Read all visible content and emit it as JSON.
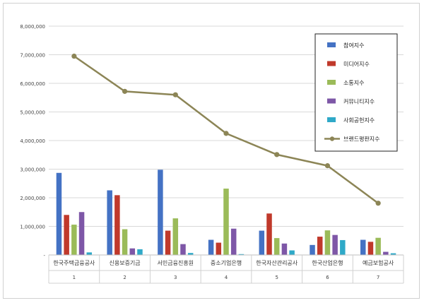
{
  "chart_data": {
    "type": "bar",
    "title": "",
    "xlabel": "",
    "ylabel": "",
    "ylim": [
      0,
      8000000
    ],
    "ytick_labels": [
      "-",
      "1,000,000",
      "2,000,000",
      "3,000,000",
      "4,000,000",
      "5,000,000",
      "6,000,000",
      "7,000,000",
      "8,000,000"
    ],
    "grid": true,
    "legend_position": "top-right",
    "categories": [
      "한국주택금융공사",
      "신용보증기금",
      "서민금융진흥원",
      "중소기업은행",
      "한국자산관리공사",
      "한국산업은행",
      "예금보험공사"
    ],
    "category_numbers": [
      "1",
      "2",
      "3",
      "4",
      "5",
      "6",
      "7"
    ],
    "series": [
      {
        "name": "참여지수",
        "kind": "bar",
        "color": "#4472C4",
        "values": [
          2870000,
          2260000,
          2980000,
          530000,
          850000,
          350000,
          530000
        ]
      },
      {
        "name": "미디어지수",
        "kind": "bar",
        "color": "#C0392B",
        "values": [
          1400000,
          2090000,
          850000,
          430000,
          1450000,
          640000,
          460000
        ]
      },
      {
        "name": "소통지수",
        "kind": "bar",
        "color": "#9BBB59",
        "values": [
          1060000,
          900000,
          1280000,
          2320000,
          590000,
          860000,
          600000
        ]
      },
      {
        "name": "커뮤니티지수",
        "kind": "bar",
        "color": "#7E57A7",
        "values": [
          1500000,
          230000,
          380000,
          920000,
          400000,
          700000,
          110000
        ]
      },
      {
        "name": "사회공헌지수",
        "kind": "bar",
        "color": "#2FA9C8",
        "values": [
          90000,
          200000,
          70000,
          30000,
          160000,
          520000,
          60000
        ]
      },
      {
        "name": "브랜드평판지수",
        "kind": "line",
        "color": "#8C8556",
        "values": [
          6950000,
          5720000,
          5600000,
          4250000,
          3510000,
          3120000,
          1810000
        ]
      }
    ]
  }
}
